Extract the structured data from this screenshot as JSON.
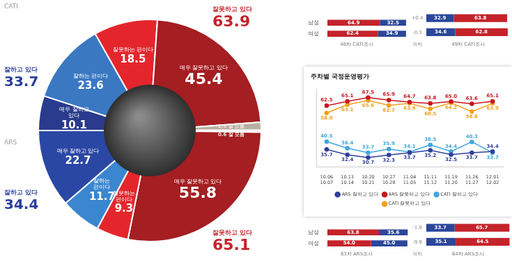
{
  "chart_data": [
    {
      "type": "doughnut",
      "data_labels": true,
      "groups": [
        {
          "name": "CATI",
          "categories": [
            "매우 잘하고 있다",
            "잘하는 편이다",
            "잘못하는 편이다",
            "매우 잘못하고 있다",
            "잘 모름"
          ],
          "values": [
            10.1,
            23.6,
            18.5,
            45.4,
            2.3
          ],
          "colors": [
            "#2a3a8c",
            "#3a78c2",
            "#e4262c",
            "#a41e22",
            "#b9aea3"
          ],
          "totals": {
            "categories": [
              "잘하고 있다",
              "잘못하고 있다"
            ],
            "values": [
              33.7,
              63.9
            ],
            "colors": [
              "#2b3f9b",
              "#c4232a"
            ]
          }
        },
        {
          "name": "ARS",
          "categories": [
            "잘 모름",
            "매우 잘못하고 있다",
            "잘못하는 편이다",
            "잘하는 편이다",
            "매우 잘하고 있다"
          ],
          "values": [
            0.6,
            55.8,
            9.3,
            11.7,
            22.7
          ],
          "colors": [
            "#c4b9ad",
            "#a41e22",
            "#e4262c",
            "#3a86cf",
            "#2b47a4"
          ],
          "totals": {
            "categories": [
              "잘하고 있다",
              "잘못하고 있다"
            ],
            "values": [
              34.4,
              65.1
            ],
            "colors": [
              "#2b3f9b",
              "#c4232a"
            ]
          }
        }
      ]
    },
    {
      "type": "line",
      "title": "주차별 국정운영평가",
      "categories": [
        [
          "10.06",
          "10.07"
        ],
        [
          "10.13",
          "10.14"
        ],
        [
          "10.20",
          "10.21"
        ],
        [
          "10.27",
          "10.28"
        ],
        [
          "11.04",
          "11.05"
        ],
        [
          "11.11",
          "11.12"
        ],
        [
          "11.19",
          "11.20"
        ],
        [
          "11.26",
          "11.27"
        ],
        [
          "12.01",
          "12.02"
        ]
      ],
      "series": [
        {
          "name": "ARS 잘하고 있다",
          "color": "#2e3f9e",
          "values": [
            35.7,
            32.4,
            30.7,
            32.3,
            33.7,
            35.2,
            32.5,
            33.7,
            34.4
          ]
        },
        {
          "name": "ARS 잘못하고 있다",
          "color": "#c8161d",
          "values": [
            62.5,
            65.1,
            67.5,
            65.9,
            64.7,
            63.8,
            65.0,
            63.6,
            65.1
          ],
          "value_labels": [
            "62.5",
            "65.1",
            "67.5",
            "65.9",
            "64.7",
            "63.8",
            "65.0",
            "63.6",
            "65.1"
          ]
        },
        {
          "name": "CATI 잘하고 있다",
          "color": "#3fa7de",
          "values": [
            40.5,
            36.4,
            33.7,
            35.9,
            34.1,
            38.5,
            34.4,
            40.3,
            33.7
          ]
        },
        {
          "name": "CATI 잘못하고 있다",
          "color": "#f2a01e",
          "values": [
            58.0,
            63.1,
            65.6,
            62.7,
            63.9,
            60.5,
            64.2,
            58.8,
            63.9
          ],
          "value_labels": [
            "58.0",
            "63.1",
            "65.6",
            "62.7",
            "63.9",
            "60.5",
            "64.2",
            "58.8",
            "63.9"
          ]
        }
      ],
      "ylim": [
        25,
        72
      ],
      "tick_labels": "x",
      "grid": false,
      "legend": "bottom",
      "data_labels": true,
      "marker": "circle"
    },
    {
      "type": "bar",
      "orientation": "horizontal",
      "stacked": true,
      "title": "48차 CATI조사",
      "categories": [
        "남성",
        "여성"
      ],
      "series": [
        {
          "color": "#c4232a",
          "values": [
            64.9,
            62.4
          ]
        },
        {
          "color": "#2b479a",
          "values": [
            32.5,
            34.9
          ]
        }
      ],
      "xlim": [
        0,
        100
      ],
      "tick_labels": "y",
      "data_labels": true
    },
    {
      "type": "bar",
      "orientation": "horizontal",
      "stacked": true,
      "title": "49차 CATI조사",
      "categories": [
        "남성",
        "여성"
      ],
      "series": [
        {
          "color": "#2b479a",
          "values": [
            32.9,
            34.6
          ]
        },
        {
          "color": "#c4232a",
          "values": [
            63.8,
            62.8
          ]
        }
      ],
      "xlim": [
        0,
        100
      ],
      "tick_labels": false,
      "data_labels": true
    },
    {
      "type": "bar",
      "orientation": "horizontal",
      "stacked": true,
      "title": "63차 ARS조사",
      "categories": [
        "남성",
        "여성"
      ],
      "series": [
        {
          "color": "#c4232a",
          "values": [
            63.8,
            54.0
          ],
          "value_labels": [
            "63.8",
            "54.0"
          ]
        },
        {
          "color": "#2b479a",
          "values": [
            35.6,
            45.0
          ],
          "value_labels": [
            "35.6",
            "45.0"
          ]
        }
      ],
      "xlim": [
        0,
        100
      ],
      "tick_labels": "y",
      "data_labels": true
    },
    {
      "type": "bar",
      "orientation": "horizontal",
      "stacked": true,
      "title": "64차 ARS조사",
      "categories": [
        "남성",
        "여성"
      ],
      "series": [
        {
          "color": "#2b479a",
          "values": [
            33.7,
            35.1
          ]
        },
        {
          "color": "#c4232a",
          "values": [
            65.7,
            64.5
          ]
        }
      ],
      "xlim": [
        0,
        100
      ],
      "tick_labels": false,
      "data_labels": true
    }
  ],
  "gaps": [
    {
      "title": "격차",
      "labels": [
        "+0.4",
        "-0.3"
      ]
    },
    {
      "title": "격차",
      "labels": [
        "-1.9",
        "-9.9"
      ]
    }
  ]
}
